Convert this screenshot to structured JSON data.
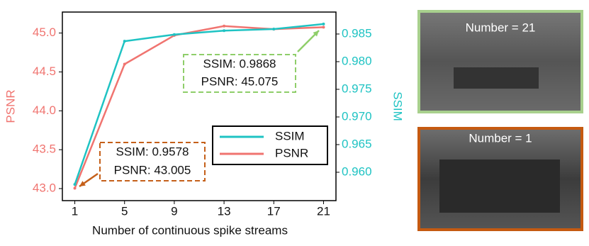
{
  "chart_data": {
    "type": "line",
    "x_label": "Number of continuous spike streams",
    "y_label": "PSNR",
    "y2_label": "SSIM",
    "x": [
      1,
      5,
      9,
      13,
      17,
      21
    ],
    "xlim": [
      0,
      22
    ],
    "xticks": [
      1,
      5,
      9,
      13,
      17,
      21
    ],
    "ylim": [
      42.845,
      45.27
    ],
    "yticks": [
      {
        "value": 43,
        "label": "43.0"
      },
      43.5,
      {
        "value": 44,
        "label": "44.0"
      },
      44.5,
      {
        "value": 45,
        "label": "45.0"
      }
    ],
    "y2lim": [
      0.95487,
      0.98897
    ],
    "y2ticks": [
      {
        "value": 0.96,
        "label": "0.960"
      },
      0.965,
      {
        "value": 0.97,
        "label": "0.970"
      },
      0.975,
      {
        "value": 0.98,
        "label": "0.980"
      },
      0.985
    ],
    "legend": "lower right",
    "series": [
      {
        "name": "SSIM",
        "color": "#1fc3c3",
        "axis": "y2",
        "values": [
          0.9578,
          0.9837,
          0.9849,
          0.9856,
          0.9859,
          0.9868
        ]
      },
      {
        "name": "PSNR",
        "color": "#f07470",
        "values": [
          43.005,
          44.6,
          44.97,
          45.09,
          45.05,
          45.075
        ]
      }
    ],
    "annotations": [
      {
        "lines": [
          "SSIM: 0.9868",
          "PSNR: 45.075"
        ],
        "color": "#8fce6a"
      },
      {
        "lines": [
          "SSIM: 0.9578",
          "PSNR: 43.005"
        ],
        "color": "#c5601a"
      }
    ]
  },
  "panels": [
    {
      "label": "Number = 21",
      "border_color": "#a8d08d"
    },
    {
      "label": "Number = 1",
      "border_color": "#c55a11"
    }
  ]
}
